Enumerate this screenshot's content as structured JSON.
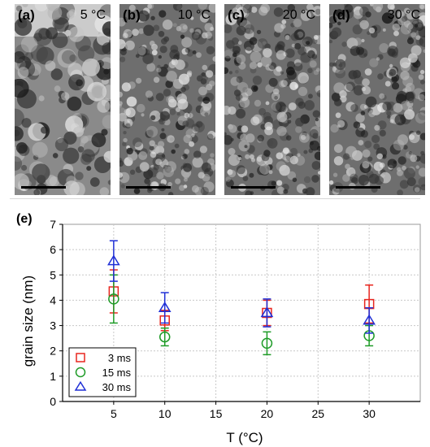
{
  "micrographs": [
    {
      "panel": "(a)",
      "temp": "5 °C",
      "tone": "light"
    },
    {
      "panel": "(b)",
      "temp": "10 °C",
      "tone": "dark"
    },
    {
      "panel": "(c)",
      "temp": "20 °C",
      "tone": "dark"
    },
    {
      "panel": "(d)",
      "temp": "30 °C",
      "tone": "dark"
    }
  ],
  "chart_data": {
    "type": "scatter",
    "panel_label": "(e)",
    "xlabel": "T (°C)",
    "ylabel": "grain size (nm)",
    "xlim": [
      0,
      35
    ],
    "ylim": [
      0,
      7
    ],
    "xticks": [
      5,
      10,
      15,
      20,
      25,
      30
    ],
    "yticks": [
      0,
      1,
      2,
      3,
      4,
      5,
      6,
      7
    ],
    "grid": true,
    "legend_position": "bottom-left",
    "series": [
      {
        "name": "3 ms",
        "marker": "square",
        "color": "#e8261f",
        "x": [
          5,
          10,
          20,
          30
        ],
        "y": [
          4.35,
          3.2,
          3.5,
          3.85
        ],
        "err": [
          0.85,
          0.4,
          0.5,
          0.75
        ]
      },
      {
        "name": "15 ms",
        "marker": "circle",
        "color": "#1e9b27",
        "x": [
          5,
          10,
          20,
          30
        ],
        "y": [
          4.05,
          2.55,
          2.3,
          2.6
        ],
        "err": [
          0.95,
          0.35,
          0.45,
          0.4
        ]
      },
      {
        "name": "30 ms",
        "marker": "triangle",
        "color": "#1f2fd6",
        "x": [
          5,
          10,
          20,
          30
        ],
        "y": [
          5.55,
          3.7,
          3.5,
          3.2
        ],
        "err": [
          0.8,
          0.6,
          0.55,
          0.5
        ]
      }
    ]
  }
}
